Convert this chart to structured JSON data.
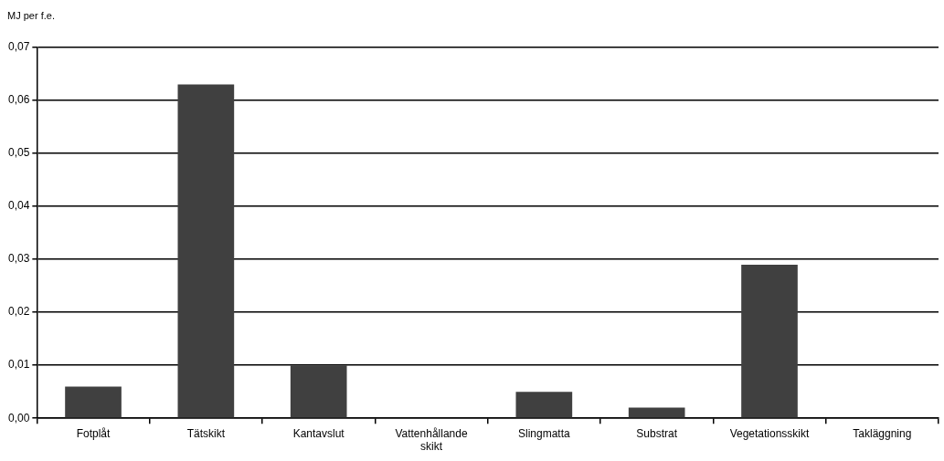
{
  "chart_data": {
    "type": "bar",
    "ylabel": "MJ per f.e.",
    "categories": [
      "Fotplåt",
      "Tätskikt",
      "Kantavslut",
      "Vattenhållande skikt",
      "Slingmatta",
      "Substrat",
      "Vegetationsskikt",
      "Takläggning"
    ],
    "values": [
      0.006,
      0.063,
      0.01,
      0,
      0.005,
      0.002,
      0.029,
      0
    ],
    "color": "#404040",
    "ylim": [
      0,
      0.07
    ],
    "yticks": [
      {
        "value": 0,
        "label": "0,00"
      },
      {
        "value": 0.01,
        "label": "0,01"
      },
      {
        "value": 0.02,
        "label": "0,02"
      },
      {
        "value": 0.03,
        "label": "0,03"
      },
      {
        "value": 0.04,
        "label": "0,04"
      },
      {
        "value": 0.05,
        "label": "0,05"
      },
      {
        "value": 0.06,
        "label": "0,06"
      },
      {
        "value": 0.07,
        "label": "0,07"
      }
    ],
    "grid": "y",
    "legend": false
  }
}
